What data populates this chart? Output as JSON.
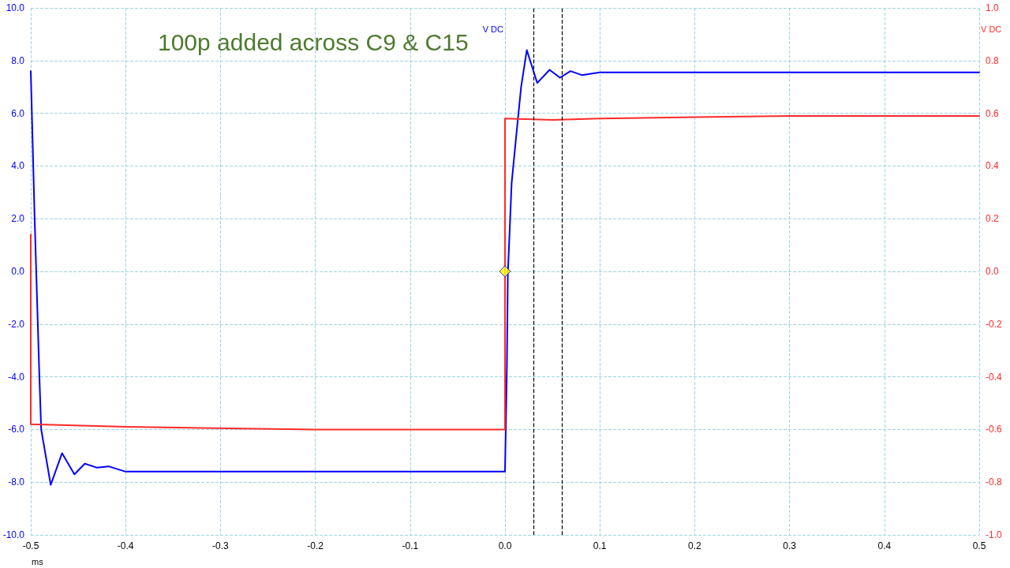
{
  "chart_data": {
    "type": "line",
    "xlabel": "ms",
    "ylabel": "V DC",
    "y2label": "V DC",
    "annotations": [
      "100p added across C9 & C15"
    ],
    "xlim": [
      -0.5,
      0.5
    ],
    "xticks": [
      -0.5,
      -0.4,
      -0.3,
      -0.2,
      -0.1,
      {
        "value": 0,
        "label": "0.0"
      },
      0.1,
      0.2,
      0.3,
      0.4,
      0.5
    ],
    "ylim": [
      -10,
      10
    ],
    "yticks": [
      {
        "value": -10,
        "label": "-10.0"
      },
      {
        "value": -8,
        "label": "-8.0"
      },
      {
        "value": -6,
        "label": "-6.0"
      },
      {
        "value": -4,
        "label": "-4.0"
      },
      {
        "value": -2,
        "label": "-2.0"
      },
      {
        "value": 0,
        "label": "0.0"
      },
      {
        "value": 2,
        "label": "2.0"
      },
      {
        "value": 4,
        "label": "4.0"
      },
      {
        "value": 6,
        "label": "6.0"
      },
      {
        "value": 8,
        "label": "8.0"
      },
      {
        "value": 10,
        "label": "10.0"
      }
    ],
    "y2lim": [
      -1,
      1
    ],
    "y2ticks": [
      {
        "value": -1,
        "label": "-1.0"
      },
      -0.8,
      -0.6,
      -0.4,
      -0.2,
      {
        "value": 0,
        "label": "0.0"
      },
      0.2,
      0.4,
      0.6,
      0.8,
      {
        "value": 1,
        "label": "1.0"
      }
    ],
    "grid": true,
    "marker": "none",
    "line_style": "solid",
    "ref_lines": [
      {
        "axis": "x",
        "value": 0.034,
        "label": null,
        "color": "#000000",
        "line_style": "dashed"
      },
      {
        "axis": "x",
        "value": 0.058,
        "label": null,
        "color": "#000000",
        "line_style": "dashed"
      }
    ],
    "series": [
      {
        "color": "#0000ff",
        "x": [
          -0.5,
          -0.496,
          -0.491,
          -0.489,
          -0.479,
          -0.467,
          -0.454,
          -0.443,
          -0.43,
          -0.418,
          -0.4,
          -0.2,
          0,
          0.002,
          0.003,
          0.007,
          0.012,
          0.017,
          0.023,
          0.034,
          0.047,
          0.058,
          0.069,
          0.081,
          0.1,
          0.3,
          0.5
        ],
        "values": [
          7.6,
          2.1,
          -3.9,
          -6,
          -8.1,
          -6.9,
          -7.7,
          -7.3,
          -7.45,
          -7.4,
          -7.6,
          -7.6,
          -7.6,
          -3.6,
          -0.1,
          3.35,
          5.2,
          7,
          8.4,
          7.15,
          7.65,
          7.35,
          7.6,
          7.45,
          7.55,
          7.55,
          7.55
        ]
      },
      {
        "color": "#ff2a2a",
        "axis": "y2",
        "x": [
          -0.5,
          -0.5,
          -0.4,
          -0.2,
          -0.1,
          0,
          0,
          0.05,
          0.1,
          0.2,
          0.3,
          0.4,
          0.5
        ],
        "values": [
          0.14,
          -0.58,
          -0.59,
          -0.6,
          -0.6,
          -0.6,
          0.58,
          0.575,
          0.58,
          0.585,
          0.59,
          0.59,
          0.59
        ]
      },
      {
        "type": "scatter",
        "marker": "diamond",
        "color": "#ffff00",
        "x": [
          0
        ],
        "values": [
          0
        ]
      }
    ]
  }
}
